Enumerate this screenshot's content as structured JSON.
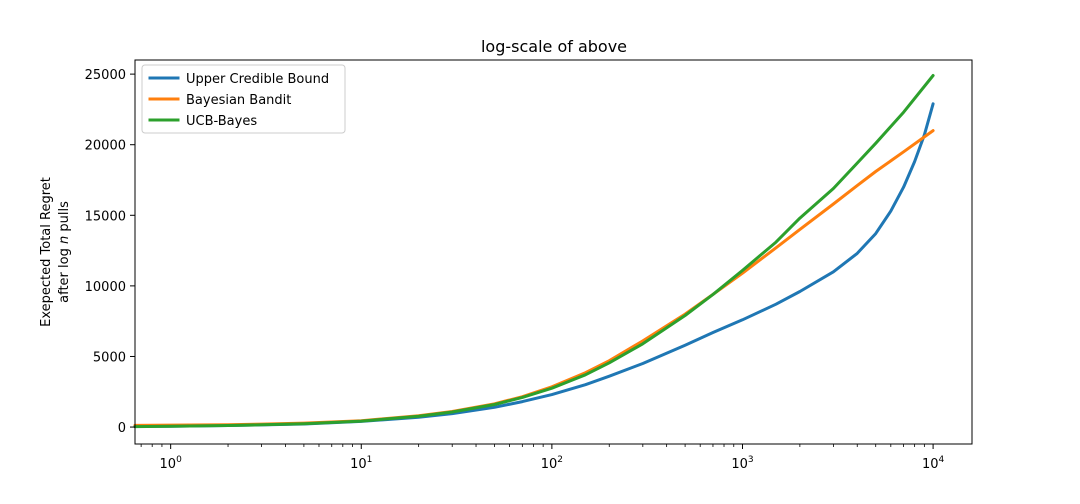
{
  "chart_data": {
    "type": "line",
    "title": "log-scale of above",
    "xlabel": "",
    "ylabel_line1": "Exepected Total Regret",
    "ylabel_line2_prefix": "after log",
    "ylabel_line2_var": "n",
    "ylabel_line2_suffix": " pulls",
    "xscale": "log",
    "xlim": [
      0.65,
      16000
    ],
    "ylim": [
      -1200,
      26000
    ],
    "xticks": [
      {
        "value": 1,
        "base": "10",
        "exp": "0"
      },
      {
        "value": 10,
        "base": "10",
        "exp": "1"
      },
      {
        "value": 100,
        "base": "10",
        "exp": "2"
      },
      {
        "value": 1000,
        "base": "10",
        "exp": "3"
      },
      {
        "value": 10000,
        "base": "10",
        "exp": "4"
      }
    ],
    "yticks": [
      0,
      5000,
      10000,
      15000,
      20000,
      25000
    ],
    "grid": false,
    "legend_position": "top-left",
    "series": [
      {
        "name": "Upper Credible Bound",
        "color": "#1f77b4",
        "x": [
          0.65,
          1,
          2,
          3,
          5,
          10,
          20,
          30,
          50,
          70,
          100,
          150,
          200,
          300,
          500,
          700,
          1000,
          1500,
          2000,
          3000,
          4000,
          5000,
          6000,
          7000,
          8000,
          9000,
          10000
        ],
        "y": [
          50,
          60,
          110,
          150,
          220,
          400,
          700,
          950,
          1400,
          1800,
          2300,
          3000,
          3600,
          4500,
          5800,
          6700,
          7600,
          8700,
          9600,
          11000,
          12300,
          13700,
          15300,
          17000,
          18800,
          20700,
          22900
        ]
      },
      {
        "name": "Bayesian Bandit",
        "color": "#ff7f0e",
        "x": [
          0.65,
          1,
          2,
          3,
          5,
          10,
          20,
          30,
          50,
          70,
          100,
          150,
          200,
          300,
          500,
          700,
          1000,
          1500,
          2000,
          3000,
          4000,
          5000,
          7000,
          10000
        ],
        "y": [
          120,
          140,
          170,
          210,
          280,
          450,
          800,
          1100,
          1650,
          2150,
          2850,
          3850,
          4700,
          6100,
          8000,
          9400,
          10900,
          12700,
          14000,
          15800,
          17100,
          18100,
          19500,
          21000
        ]
      },
      {
        "name": "UCB-Bayes",
        "color": "#2ca02c",
        "x": [
          0.65,
          1,
          2,
          3,
          5,
          10,
          20,
          30,
          50,
          70,
          100,
          150,
          200,
          300,
          500,
          700,
          1000,
          1500,
          2000,
          3000,
          4000,
          5000,
          7000,
          10000
        ],
        "y": [
          30,
          60,
          110,
          160,
          240,
          420,
          770,
          1070,
          1600,
          2100,
          2750,
          3700,
          4550,
          5900,
          7900,
          9400,
          11100,
          13100,
          14800,
          16900,
          18700,
          20100,
          22300,
          24900
        ]
      }
    ]
  }
}
